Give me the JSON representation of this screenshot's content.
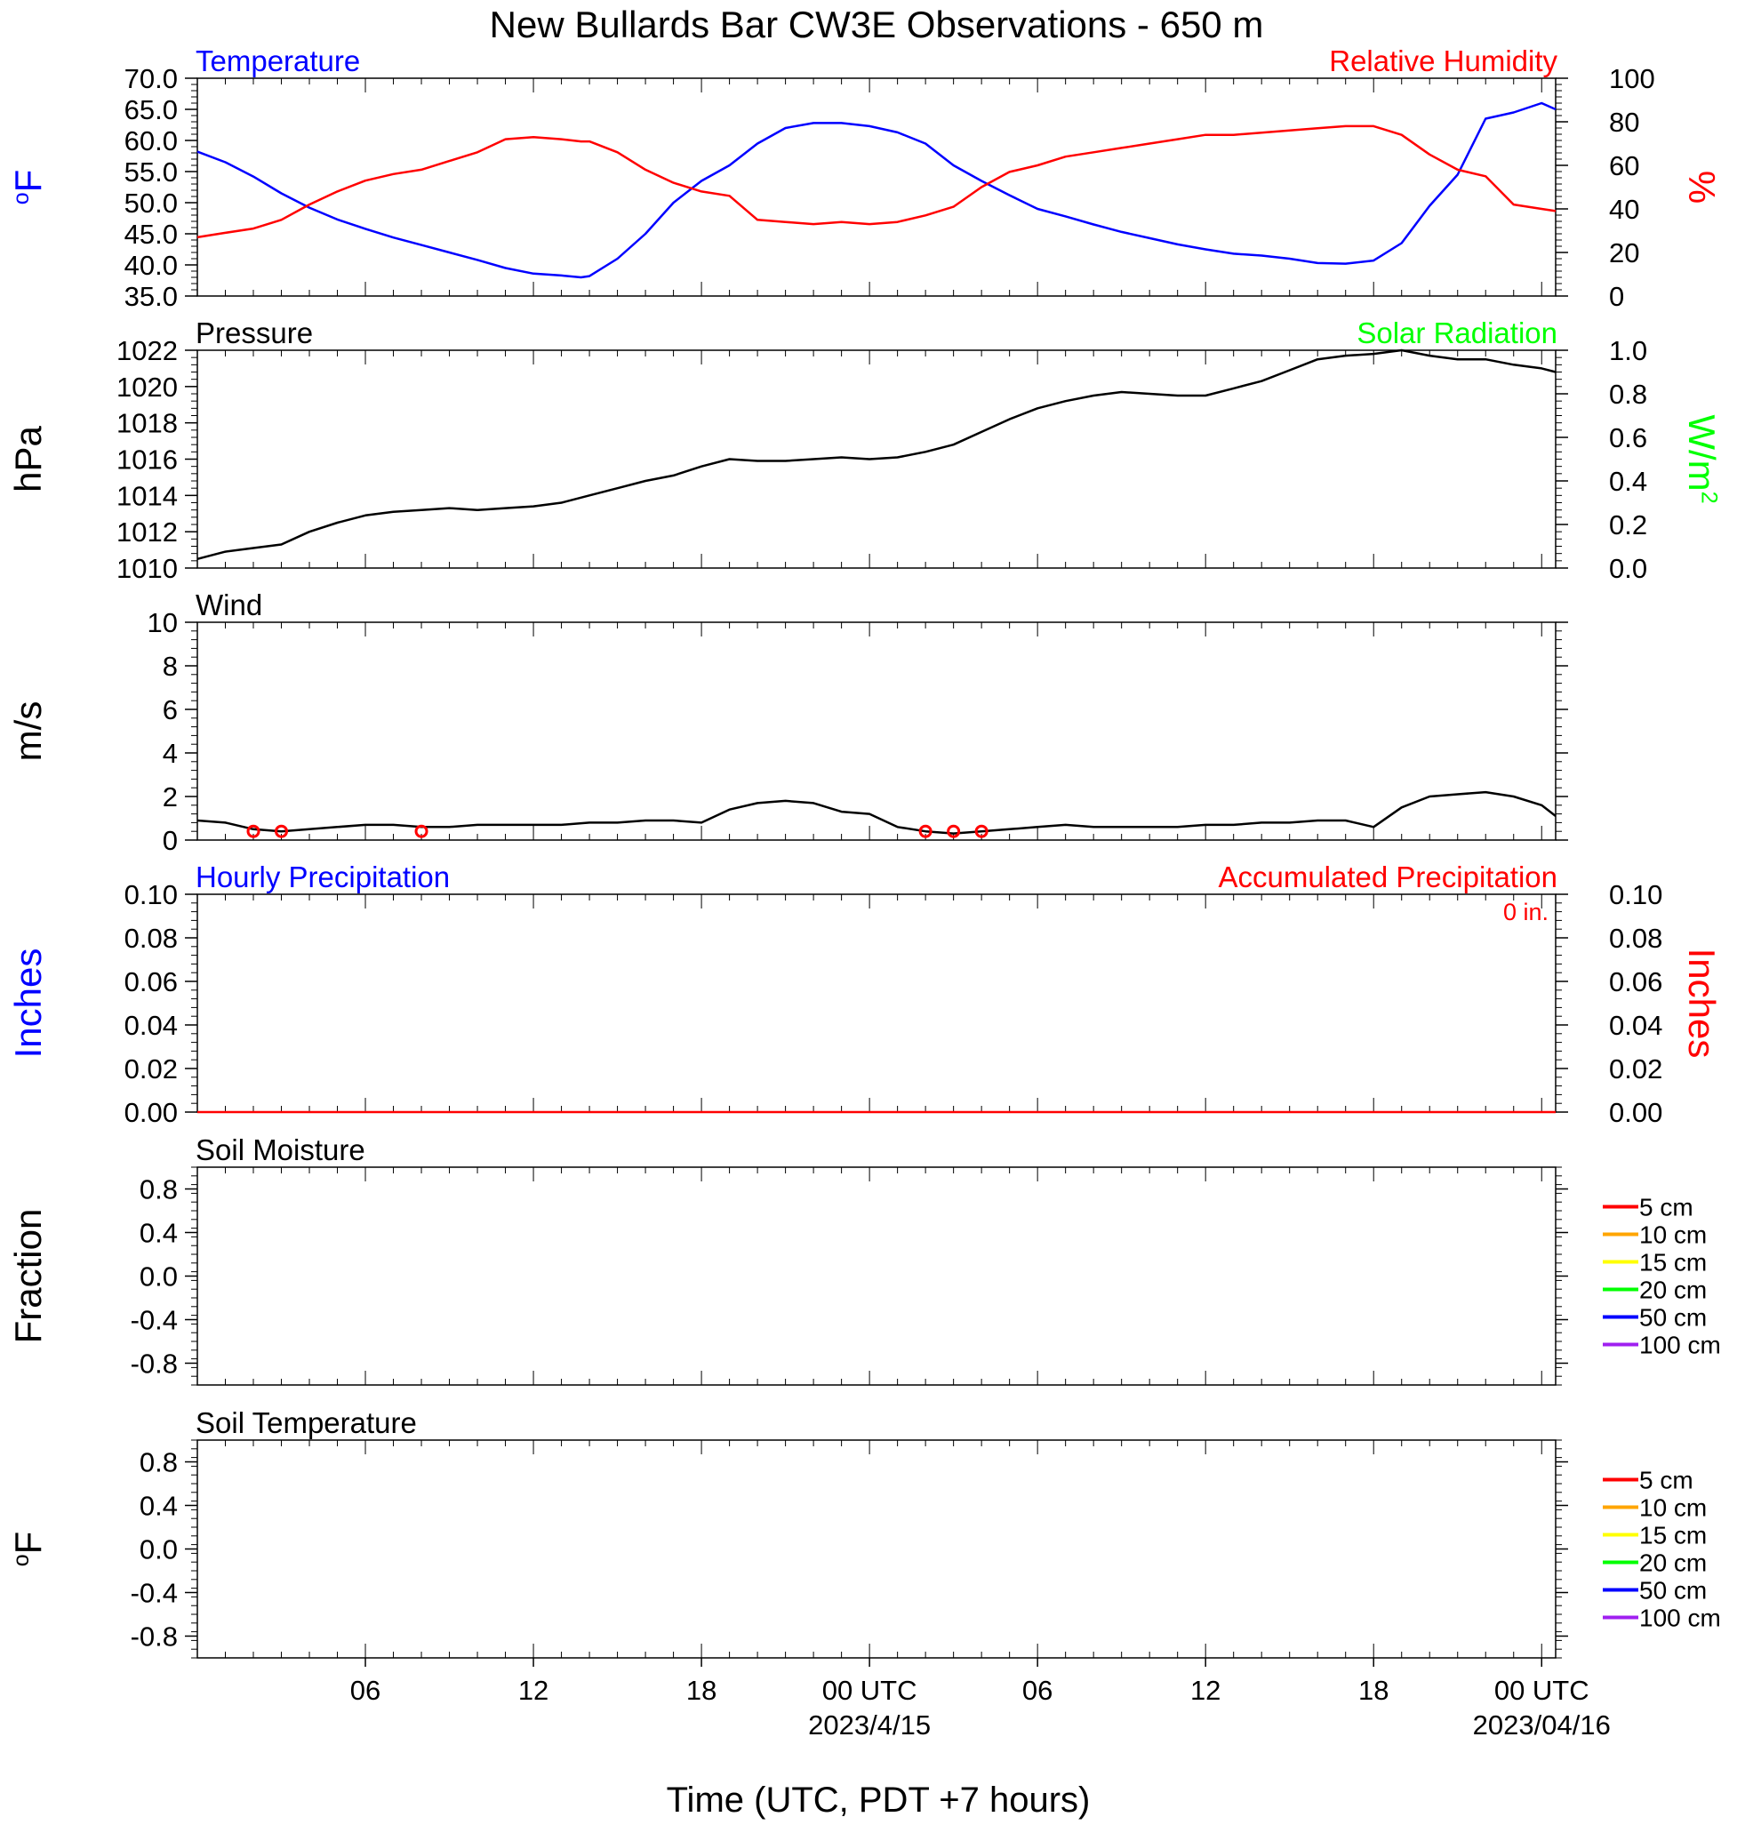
{
  "figure": {
    "title": "New Bullards Bar CW3E Observations - 650 m",
    "xaxis_title": "Time (UTC, PDT +7 hours)",
    "time_ticks": [
      {
        "hour": 6,
        "label": "06"
      },
      {
        "hour": 12,
        "label": "12"
      },
      {
        "hour": 18,
        "label": "18"
      },
      {
        "hour": 24,
        "label": "00 UTC",
        "date": "2023/4/15"
      },
      {
        "hour": 30,
        "label": "06"
      },
      {
        "hour": 36,
        "label": "12"
      },
      {
        "hour": 42,
        "label": "18"
      },
      {
        "hour": 48,
        "label": "00 UTC",
        "date": "2023/04/16"
      }
    ],
    "colors": {
      "temperature": "#0000ff",
      "humidity": "#ff0000",
      "solar": "#00ff00",
      "pressure": "#000000",
      "wind": "#000000",
      "wind_barb": "#ff0000"
    }
  },
  "chart_data": [
    {
      "type": "line",
      "panel": "temperature_humidity",
      "left_label": "Temperature",
      "right_label": "Relative Humidity",
      "ylabel_left": "oF",
      "ylabel_right": "%",
      "ylim_left": [
        35,
        70
      ],
      "ylim_right": [
        0,
        100
      ],
      "yticks_left": [
        "70.0",
        "65.0",
        "60.0",
        "55.0",
        "50.0",
        "45.0",
        "40.0",
        "35.0"
      ],
      "yticks_right": [
        "100",
        "80",
        "60",
        "40",
        "20",
        "0"
      ],
      "x_hours": [
        0,
        1,
        2,
        3,
        4,
        5,
        6,
        7,
        8,
        9,
        10,
        11,
        12,
        13,
        13.7,
        14,
        15,
        16,
        17,
        18,
        19,
        20,
        21,
        22,
        23,
        24,
        25,
        26,
        27,
        28,
        29,
        30,
        31,
        32,
        33,
        34,
        35,
        36,
        37,
        38,
        39,
        40,
        41,
        42,
        43,
        44,
        45,
        46,
        47,
        48,
        48.5
      ],
      "series": [
        {
          "name": "Temperature",
          "axis": "left",
          "color": "#0000ff",
          "values": [
            58.2,
            56.5,
            54.2,
            51.5,
            49.2,
            47.3,
            45.8,
            44.4,
            43.2,
            42.0,
            40.8,
            39.5,
            38.6,
            38.3,
            38.0,
            38.2,
            41.0,
            45.0,
            50.0,
            53.5,
            56.0,
            59.5,
            62.0,
            62.8,
            62.8,
            62.3,
            61.3,
            59.5,
            56.0,
            53.5,
            51.2,
            49.0,
            47.8,
            46.5,
            45.3,
            44.3,
            43.3,
            42.5,
            41.8,
            41.5,
            41.0,
            40.3,
            40.2,
            40.7,
            43.5,
            49.5,
            54.5,
            63.5,
            64.5,
            66.0,
            65.0
          ]
        },
        {
          "name": "Relative Humidity",
          "axis": "right",
          "color": "#ff0000",
          "values": [
            27,
            29,
            31,
            35,
            42,
            48,
            53,
            56,
            58,
            62,
            66,
            72,
            73,
            72,
            71,
            71,
            66,
            58,
            52,
            48,
            46,
            35,
            34,
            33,
            34,
            33,
            34,
            37,
            41,
            50,
            57,
            60,
            64,
            66,
            68,
            70,
            72,
            74,
            74,
            75,
            76,
            77,
            78,
            78,
            74,
            65,
            58,
            55,
            42,
            40,
            39
          ]
        }
      ]
    },
    {
      "type": "line",
      "panel": "pressure_solar",
      "left_label": "Pressure",
      "right_label": "Solar Radiation",
      "ylabel_left": "hPa",
      "ylabel_right": "W/m2",
      "ylim_left": [
        1010,
        1022
      ],
      "ylim_right": [
        0.0,
        1.0
      ],
      "yticks_left": [
        "1022",
        "1020",
        "1018",
        "1016",
        "1014",
        "1012",
        "1010"
      ],
      "yticks_right": [
        "1.0",
        "0.8",
        "0.6",
        "0.4",
        "0.2",
        "0.0"
      ],
      "x_hours": [
        0,
        1,
        2,
        3,
        4,
        5,
        6,
        7,
        8,
        9,
        10,
        11,
        12,
        13,
        14,
        15,
        16,
        17,
        18,
        19,
        20,
        21,
        22,
        23,
        24,
        25,
        26,
        27,
        28,
        29,
        30,
        31,
        32,
        33,
        34,
        35,
        36,
        37,
        38,
        39,
        40,
        41,
        42,
        43,
        44,
        45,
        46,
        47,
        48,
        48.5
      ],
      "series": [
        {
          "name": "Pressure",
          "axis": "left",
          "color": "#000000",
          "values": [
            1010.5,
            1010.9,
            1011.1,
            1011.3,
            1012.0,
            1012.5,
            1012.9,
            1013.1,
            1013.2,
            1013.3,
            1013.2,
            1013.3,
            1013.4,
            1013.6,
            1014.0,
            1014.4,
            1014.8,
            1015.1,
            1015.6,
            1016.0,
            1015.9,
            1015.9,
            1016.0,
            1016.1,
            1016.0,
            1016.1,
            1016.4,
            1016.8,
            1017.5,
            1018.2,
            1018.8,
            1019.2,
            1019.5,
            1019.7,
            1019.6,
            1019.5,
            1019.5,
            1019.9,
            1020.3,
            1020.9,
            1021.5,
            1021.7,
            1021.8,
            1022.0,
            1021.7,
            1021.5,
            1021.5,
            1021.2,
            1021.0,
            1020.8
          ]
        }
      ]
    },
    {
      "type": "line",
      "panel": "wind",
      "left_label": "Wind",
      "ylabel_left": "m/s",
      "ylim_left": [
        0,
        10
      ],
      "yticks_left": [
        "10",
        "8",
        "6",
        "4",
        "2",
        "0"
      ],
      "x_hours": [
        0,
        1,
        2,
        3,
        4,
        5,
        6,
        7,
        8,
        9,
        10,
        11,
        12,
        13,
        14,
        15,
        16,
        17,
        18,
        19,
        20,
        21,
        22,
        23,
        24,
        25,
        26,
        27,
        28,
        29,
        30,
        31,
        32,
        33,
        34,
        35,
        36,
        37,
        38,
        39,
        40,
        41,
        42,
        43,
        44,
        45,
        46,
        47,
        48,
        48.5
      ],
      "series": [
        {
          "name": "Wind speed",
          "axis": "left",
          "color": "#000000",
          "values": [
            0.9,
            0.8,
            0.5,
            0.4,
            0.5,
            0.6,
            0.7,
            0.7,
            0.6,
            0.6,
            0.7,
            0.7,
            0.7,
            0.7,
            0.8,
            0.8,
            0.9,
            0.9,
            0.8,
            1.4,
            1.7,
            1.8,
            1.7,
            1.3,
            1.2,
            0.6,
            0.4,
            0.3,
            0.4,
            0.5,
            0.6,
            0.7,
            0.6,
            0.6,
            0.6,
            0.6,
            0.7,
            0.7,
            0.8,
            0.8,
            0.9,
            0.9,
            0.6,
            1.5,
            2.0,
            2.1,
            2.2,
            2.0,
            1.6,
            1.1
          ]
        }
      ],
      "calm_markers_hours": [
        2.0,
        3.0,
        8.0,
        26.0,
        27.0,
        28.0
      ]
    },
    {
      "type": "line",
      "panel": "precipitation",
      "left_label": "Hourly Precipitation",
      "right_label": "Accumulated Precipitation",
      "annotation": "0 in.",
      "ylabel_left": "Inches",
      "ylabel_right": "Inches",
      "ylim_left": [
        0.0,
        0.1
      ],
      "ylim_right": [
        0.0,
        0.1
      ],
      "yticks_left": [
        "0.10",
        "0.08",
        "0.06",
        "0.04",
        "0.02",
        "0.00"
      ],
      "yticks_right": [
        "0.10",
        "0.08",
        "0.06",
        "0.04",
        "0.02",
        "0.00"
      ],
      "x_hours": [
        0,
        48.5
      ],
      "series": [
        {
          "name": "Accumulated Precipitation",
          "axis": "right",
          "color": "#ff0000",
          "values": [
            0,
            0
          ]
        }
      ]
    },
    {
      "type": "line",
      "panel": "soil_moisture",
      "left_label": "Soil Moisture",
      "ylabel_left": "Fraction",
      "ylim_left": [
        -1.0,
        1.0
      ],
      "yticks_left": [
        "0.8",
        "0.4",
        "0.0",
        "-0.4",
        "-0.8"
      ],
      "legend": [
        {
          "label": "5 cm",
          "color": "#ff0000"
        },
        {
          "label": "10 cm",
          "color": "#ffa500"
        },
        {
          "label": "15 cm",
          "color": "#ffff00"
        },
        {
          "label": "20 cm",
          "color": "#00ff00"
        },
        {
          "label": "50 cm",
          "color": "#0000ff"
        },
        {
          "label": "100 cm",
          "color": "#a020f0"
        }
      ],
      "series": []
    },
    {
      "type": "line",
      "panel": "soil_temperature",
      "left_label": "Soil Temperature",
      "ylabel_left": "oF",
      "ylim_left": [
        -1.0,
        1.0
      ],
      "yticks_left": [
        "0.8",
        "0.4",
        "0.0",
        "-0.4",
        "-0.8"
      ],
      "legend": [
        {
          "label": "5 cm",
          "color": "#ff0000"
        },
        {
          "label": "10 cm",
          "color": "#ffa500"
        },
        {
          "label": "15 cm",
          "color": "#ffff00"
        },
        {
          "label": "20 cm",
          "color": "#00ff00"
        },
        {
          "label": "50 cm",
          "color": "#0000ff"
        },
        {
          "label": "100 cm",
          "color": "#a020f0"
        }
      ],
      "series": []
    }
  ]
}
